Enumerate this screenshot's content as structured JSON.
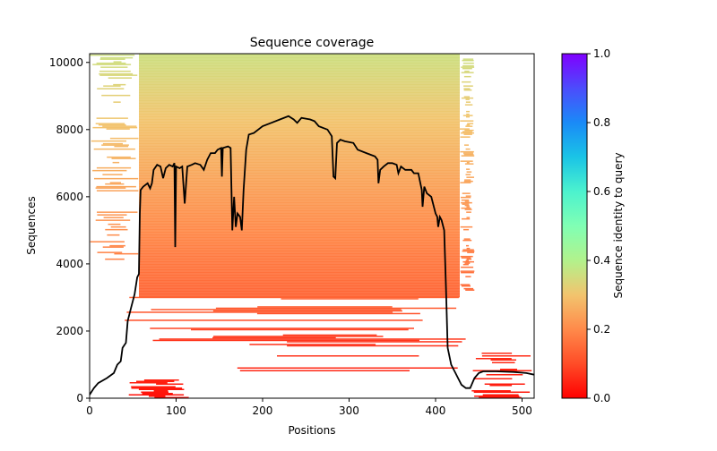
{
  "chart_data": {
    "type": "heatmap",
    "title": "Sequence coverage",
    "xlabel": "Positions",
    "ylabel": "Sequences",
    "xlim": [
      0,
      514
    ],
    "ylim": [
      0,
      10260
    ],
    "xticks": [
      "0",
      "100",
      "200",
      "300",
      "400",
      "500"
    ],
    "yticks": [
      "0",
      "2000",
      "4000",
      "6000",
      "8000",
      "10000"
    ],
    "grid": false,
    "colorbar": {
      "label": "Sequence identity to query",
      "range": [
        0,
        1
      ],
      "colormap": "rainbow",
      "ticks": [
        "0.0",
        "0.2",
        "0.4",
        "0.6",
        "0.8",
        "1.0"
      ]
    },
    "alignment_bands": [
      {
        "y": [
          3000,
          10260
        ],
        "x": [
          57,
          428
        ],
        "identity": [
          0.14,
          0.36
        ],
        "density": 1.0
      },
      {
        "y": [
          3000,
          10260
        ],
        "x": [
          428,
          445
        ],
        "identity": [
          0.14,
          0.36
        ],
        "density": 0.5
      },
      {
        "y": [
          4000,
          10260
        ],
        "x": [
          0,
          57
        ],
        "identity": [
          0.18,
          0.36
        ],
        "density": 0.35
      },
      {
        "y": [
          1500,
          3000
        ],
        "x": [
          40,
          440
        ],
        "identity": [
          0.06,
          0.14
        ],
        "density": 0.6
      },
      {
        "y": [
          800,
          1500
        ],
        "x": [
          170,
          430
        ],
        "identity": [
          0.05,
          0.08
        ],
        "density": 0.5
      },
      {
        "y": [
          0,
          700
        ],
        "x": [
          45,
          115
        ],
        "identity": [
          0.02,
          0.05
        ],
        "density": 0.8
      },
      {
        "y": [
          0,
          1400
        ],
        "x": [
          440,
          514
        ],
        "identity": [
          0.03,
          0.06
        ],
        "density": 0.6
      }
    ],
    "coverage_line": {
      "color": "#000000",
      "x": [
        0,
        5,
        10,
        20,
        28,
        32,
        36,
        38,
        42,
        44,
        48,
        52,
        55,
        57,
        58,
        59,
        62,
        67,
        70,
        72,
        74,
        78,
        82,
        85,
        88,
        92,
        96,
        98,
        99,
        100,
        104,
        107,
        110,
        113,
        118,
        122,
        128,
        132,
        136,
        140,
        145,
        148,
        152,
        153,
        154,
        160,
        163,
        165,
        167,
        169,
        171,
        174,
        176,
        178,
        181,
        184,
        190,
        200,
        210,
        220,
        230,
        236,
        240,
        245,
        255,
        260,
        265,
        275,
        280,
        282,
        284,
        286,
        290,
        295,
        305,
        310,
        320,
        330,
        333,
        334,
        336,
        340,
        345,
        350,
        355,
        357,
        360,
        365,
        372,
        375,
        380,
        384,
        385,
        387,
        390,
        395,
        400,
        402,
        403,
        405,
        407,
        410,
        412,
        414,
        418,
        425,
        430,
        435,
        440,
        445,
        450,
        455,
        470,
        490,
        505,
        514
      ],
      "y": [
        100,
        300,
        450,
        600,
        750,
        1000,
        1100,
        1500,
        1650,
        2300,
        2700,
        3100,
        3600,
        3700,
        5500,
        6200,
        6300,
        6400,
        6250,
        6400,
        6800,
        6950,
        6900,
        6550,
        6850,
        6950,
        6900,
        7000,
        4500,
        6900,
        6850,
        6900,
        5800,
        6900,
        6950,
        7000,
        6950,
        6800,
        7100,
        7300,
        7300,
        7400,
        7450,
        6600,
        7450,
        7500,
        7450,
        5000,
        6000,
        5100,
        5500,
        5400,
        5000,
        6200,
        7400,
        7850,
        7900,
        8100,
        8200,
        8300,
        8400,
        8300,
        8200,
        8350,
        8300,
        8250,
        8100,
        8000,
        7800,
        6600,
        6550,
        7600,
        7700,
        7650,
        7600,
        7400,
        7300,
        7200,
        7100,
        6400,
        6800,
        6900,
        7000,
        7000,
        6950,
        6700,
        6900,
        6800,
        6800,
        6700,
        6700,
        6200,
        5700,
        6300,
        6100,
        6000,
        5500,
        5400,
        5100,
        5400,
        5300,
        5000,
        3300,
        1500,
        1000,
        650,
        400,
        300,
        300,
        600,
        750,
        800,
        800,
        780,
        750,
        700
      ]
    }
  }
}
